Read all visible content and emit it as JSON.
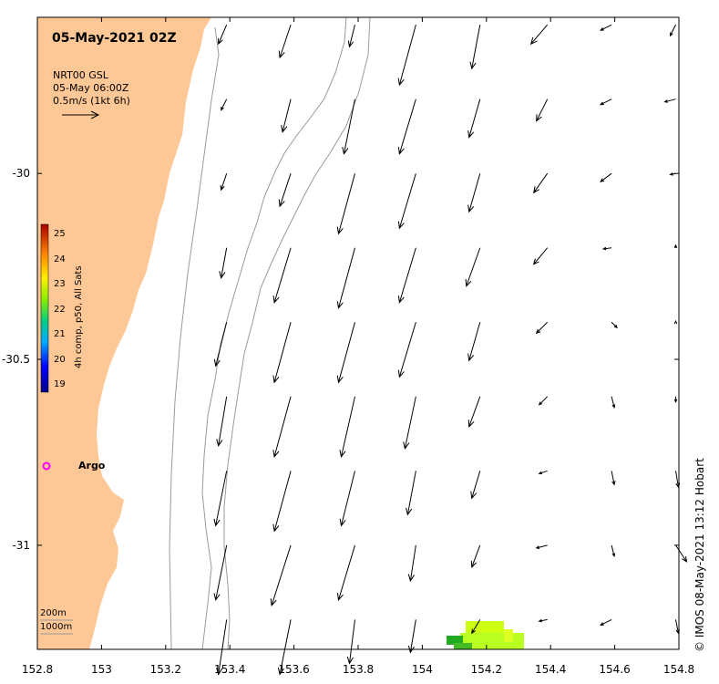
{
  "map": {
    "title": "05-May-2021 02Z",
    "legend": {
      "line1": "NRT00 GSL",
      "line2": "05-May 06:00Z",
      "line3": "0.5m/s (1kt 6h)"
    },
    "x_ticks": [
      "152.8",
      "153",
      "153.2",
      "153.4",
      "153.6",
      "153.8",
      "154",
      "154.2",
      "154.4",
      "154.6",
      "154.8"
    ],
    "y_ticks": [
      "-30",
      "-30.5",
      "-31"
    ],
    "x_range": [
      152.8,
      154.8
    ],
    "y_range": [
      -29.58,
      -31.28
    ],
    "colorbar": {
      "title": "4h comp, p50, All Sats",
      "labels": [
        "25",
        "24",
        "23",
        "22",
        "21",
        "20",
        "19"
      ],
      "min": 19,
      "max": 25
    },
    "argo_label": "Argo",
    "depth_labels": [
      "200m",
      "1000m"
    ],
    "credit": "© IMOS 08-May-2021 13:12 Hobart",
    "colors": {
      "land": "#fdc895",
      "isobath": "#9a9a9a",
      "argo": "#ff00ff",
      "sst_low": "#22aa22",
      "sst_high": "#ccff11"
    }
  },
  "chart_data": {
    "type": "vector-field",
    "title": "05-May-2021 02Z",
    "xlabel": "",
    "ylabel": "",
    "xlim": [
      152.8,
      154.8
    ],
    "ylim": [
      -31.28,
      -29.58
    ],
    "vector_scale": "0.5m/s (1kt 6h)",
    "argo_float": {
      "lon": 152.83,
      "lat": -30.8
    },
    "vectors": [
      {
        "lon": 153.39,
        "lat": -29.6,
        "u": -0.15,
        "v": -0.35
      },
      {
        "lon": 153.59,
        "lat": -29.6,
        "u": -0.2,
        "v": -0.6
      },
      {
        "lon": 153.79,
        "lat": -29.6,
        "u": -0.1,
        "v": -0.4
      },
      {
        "lon": 153.98,
        "lat": -29.6,
        "u": -0.3,
        "v": -1.1
      },
      {
        "lon": 154.18,
        "lat": -29.6,
        "u": -0.15,
        "v": -0.8
      },
      {
        "lon": 154.39,
        "lat": -29.6,
        "u": -0.3,
        "v": -0.35
      },
      {
        "lon": 154.59,
        "lat": -29.6,
        "u": -0.2,
        "v": -0.1
      },
      {
        "lon": 154.79,
        "lat": -29.6,
        "u": -0.1,
        "v": -0.2
      },
      {
        "lon": 153.39,
        "lat": -29.8,
        "u": -0.1,
        "v": -0.2
      },
      {
        "lon": 153.59,
        "lat": -29.8,
        "u": -0.15,
        "v": -0.6
      },
      {
        "lon": 153.79,
        "lat": -29.8,
        "u": -0.2,
        "v": -1.0
      },
      {
        "lon": 153.98,
        "lat": -29.8,
        "u": -0.3,
        "v": -1.0
      },
      {
        "lon": 154.18,
        "lat": -29.8,
        "u": -0.2,
        "v": -0.7
      },
      {
        "lon": 154.39,
        "lat": -29.8,
        "u": -0.2,
        "v": -0.4
      },
      {
        "lon": 154.59,
        "lat": -29.8,
        "u": -0.2,
        "v": -0.1
      },
      {
        "lon": 154.79,
        "lat": -29.8,
        "u": -0.2,
        "v": -0.05
      },
      {
        "lon": 153.39,
        "lat": -30.0,
        "u": -0.1,
        "v": -0.3
      },
      {
        "lon": 153.59,
        "lat": -30.0,
        "u": -0.2,
        "v": -0.6
      },
      {
        "lon": 153.79,
        "lat": -30.0,
        "u": -0.3,
        "v": -1.1
      },
      {
        "lon": 153.98,
        "lat": -30.0,
        "u": -0.3,
        "v": -1.0
      },
      {
        "lon": 154.18,
        "lat": -30.0,
        "u": -0.2,
        "v": -0.7
      },
      {
        "lon": 154.39,
        "lat": -30.0,
        "u": -0.25,
        "v": -0.35
      },
      {
        "lon": 154.59,
        "lat": -30.0,
        "u": -0.2,
        "v": -0.15
      },
      {
        "lon": 154.79,
        "lat": -30.0,
        "u": -0.1,
        "v": -0.02
      },
      {
        "lon": 153.39,
        "lat": -30.2,
        "u": -0.1,
        "v": -0.55
      },
      {
        "lon": 153.59,
        "lat": -30.2,
        "u": -0.3,
        "v": -1.0
      },
      {
        "lon": 153.79,
        "lat": -30.2,
        "u": -0.3,
        "v": -1.1
      },
      {
        "lon": 153.98,
        "lat": -30.2,
        "u": -0.3,
        "v": -1.0
      },
      {
        "lon": 154.18,
        "lat": -30.2,
        "u": -0.25,
        "v": -0.7
      },
      {
        "lon": 154.39,
        "lat": -30.2,
        "u": -0.25,
        "v": -0.3
      },
      {
        "lon": 154.59,
        "lat": -30.2,
        "u": -0.15,
        "v": -0.02
      },
      {
        "lon": 154.79,
        "lat": -30.2,
        "u": 0.0,
        "v": 0.05
      },
      {
        "lon": 153.39,
        "lat": -30.4,
        "u": -0.2,
        "v": -0.8
      },
      {
        "lon": 153.59,
        "lat": -30.4,
        "u": -0.3,
        "v": -1.1
      },
      {
        "lon": 153.79,
        "lat": -30.4,
        "u": -0.3,
        "v": -1.1
      },
      {
        "lon": 153.98,
        "lat": -30.4,
        "u": -0.3,
        "v": -1.0
      },
      {
        "lon": 154.18,
        "lat": -30.4,
        "u": -0.2,
        "v": -0.7
      },
      {
        "lon": 154.39,
        "lat": -30.4,
        "u": -0.2,
        "v": -0.2
      },
      {
        "lon": 154.59,
        "lat": -30.4,
        "u": 0.1,
        "v": -0.1
      },
      {
        "lon": 154.79,
        "lat": -30.4,
        "u": 0.0,
        "v": 0.02
      },
      {
        "lon": 153.39,
        "lat": -30.6,
        "u": -0.15,
        "v": -0.9
      },
      {
        "lon": 153.59,
        "lat": -30.6,
        "u": -0.3,
        "v": -1.1
      },
      {
        "lon": 153.79,
        "lat": -30.6,
        "u": -0.25,
        "v": -1.1
      },
      {
        "lon": 153.98,
        "lat": -30.6,
        "u": -0.2,
        "v": -0.95
      },
      {
        "lon": 154.18,
        "lat": -30.6,
        "u": -0.2,
        "v": -0.55
      },
      {
        "lon": 154.39,
        "lat": -30.6,
        "u": -0.15,
        "v": -0.15
      },
      {
        "lon": 154.59,
        "lat": -30.6,
        "u": 0.05,
        "v": -0.2
      },
      {
        "lon": 154.79,
        "lat": -30.6,
        "u": 0.0,
        "v": -0.1
      },
      {
        "lon": 153.39,
        "lat": -30.8,
        "u": -0.2,
        "v": -1.0
      },
      {
        "lon": 153.59,
        "lat": -30.8,
        "u": -0.3,
        "v": -1.1
      },
      {
        "lon": 153.79,
        "lat": -30.8,
        "u": -0.25,
        "v": -1.0
      },
      {
        "lon": 153.98,
        "lat": -30.8,
        "u": -0.15,
        "v": -0.8
      },
      {
        "lon": 154.18,
        "lat": -30.8,
        "u": -0.15,
        "v": -0.5
      },
      {
        "lon": 154.39,
        "lat": -30.8,
        "u": -0.15,
        "v": -0.05
      },
      {
        "lon": 154.59,
        "lat": -30.8,
        "u": 0.05,
        "v": -0.25
      },
      {
        "lon": 154.79,
        "lat": -30.8,
        "u": 0.05,
        "v": -0.3
      },
      {
        "lon": 153.39,
        "lat": -31.0,
        "u": -0.2,
        "v": -1.0
      },
      {
        "lon": 153.59,
        "lat": -31.0,
        "u": -0.35,
        "v": -1.1
      },
      {
        "lon": 153.79,
        "lat": -31.0,
        "u": -0.3,
        "v": -1.0
      },
      {
        "lon": 153.98,
        "lat": -31.0,
        "u": -0.1,
        "v": -0.65
      },
      {
        "lon": 154.18,
        "lat": -31.0,
        "u": -0.15,
        "v": -0.4
      },
      {
        "lon": 154.39,
        "lat": -31.0,
        "u": -0.2,
        "v": -0.05
      },
      {
        "lon": 154.59,
        "lat": -31.0,
        "u": 0.05,
        "v": -0.2
      },
      {
        "lon": 154.79,
        "lat": -31.0,
        "u": 0.2,
        "v": -0.3
      },
      {
        "lon": 153.39,
        "lat": -31.2,
        "u": -0.15,
        "v": -1.0
      },
      {
        "lon": 153.59,
        "lat": -31.2,
        "u": -0.2,
        "v": -1.0
      },
      {
        "lon": 153.79,
        "lat": -31.2,
        "u": -0.1,
        "v": -0.8
      },
      {
        "lon": 153.98,
        "lat": -31.2,
        "u": -0.1,
        "v": -0.6
      },
      {
        "lon": 154.18,
        "lat": -31.2,
        "u": -0.15,
        "v": -0.25
      },
      {
        "lon": 154.39,
        "lat": -31.2,
        "u": -0.15,
        "v": -0.03
      },
      {
        "lon": 154.59,
        "lat": -31.2,
        "u": -0.2,
        "v": -0.1
      },
      {
        "lon": 154.79,
        "lat": -31.2,
        "u": 0.05,
        "v": -0.25
      }
    ]
  }
}
